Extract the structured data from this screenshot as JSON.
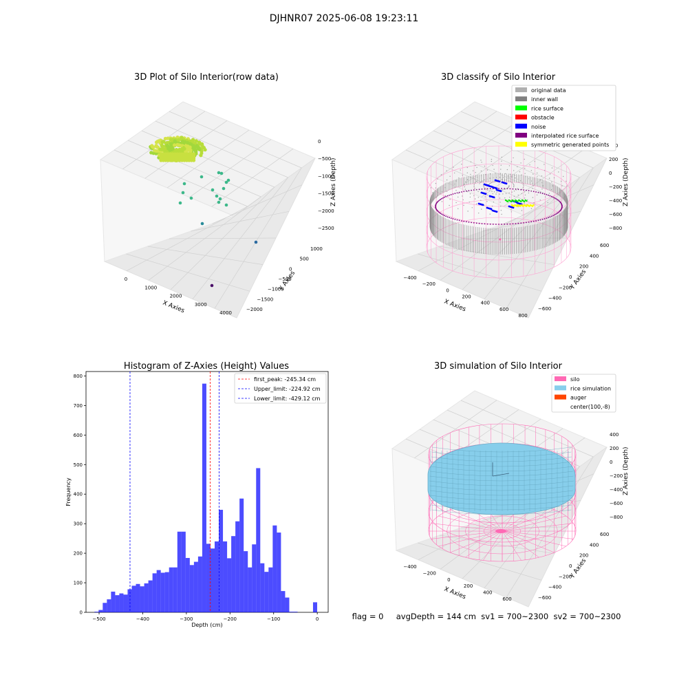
{
  "figure": {
    "suptitle": "DJHNR07 2025-06-08 19:23:11",
    "status_line": "flag = 0     avgDepth = 144 cm  sv1 = 700~2300  sv2 = 700~2300"
  },
  "panels": {
    "raw": {
      "title": "3D Plot of Silo Interior(row data)",
      "xlabel": "X Axies",
      "ylabel": "Y Axies",
      "zlabel": "Z Axies (Depth)",
      "xticks": [
        "0",
        "1000",
        "2000",
        "3000",
        "4000"
      ],
      "yticks": [
        "1000",
        "500",
        "0",
        "−500",
        "−1000",
        "−1500",
        "−2000"
      ],
      "zticks": [
        "0",
        "−500",
        "−1000",
        "−1500",
        "−2000",
        "−2500"
      ]
    },
    "classify": {
      "title": "3D classify of Silo Interior",
      "xlabel": "X Axies",
      "ylabel": "Y Axies",
      "zlabel": "Z Axies (Depth)",
      "xticks": [
        "−400",
        "−200",
        "0",
        "200",
        "400",
        "600",
        "800"
      ],
      "yticks": [
        "600",
        "400",
        "200",
        "0",
        "−200",
        "−400",
        "−600"
      ],
      "zticks": [
        "400",
        "200",
        "0",
        "−200",
        "−400",
        "−600",
        "−800"
      ],
      "legend": [
        {
          "label": "original data",
          "color": "#b0b0b0"
        },
        {
          "label": "inner wall",
          "color": "#808080"
        },
        {
          "label": "rice surface",
          "color": "#00ff00"
        },
        {
          "label": "obstacle",
          "color": "#ff0000"
        },
        {
          "label": "noise",
          "color": "#0000ff"
        },
        {
          "label": "interpolated rice surface",
          "color": "#800080"
        },
        {
          "label": "symmetric generated points",
          "color": "#ffff00"
        }
      ]
    },
    "simulation": {
      "title": "3D simulation of Silo Interior",
      "xlabel": "X Axies",
      "ylabel": "Y Axies",
      "zlabel": "Z Axies (Depth)",
      "xticks": [
        "−400",
        "−200",
        "0",
        "200",
        "400",
        "600"
      ],
      "yticks": [
        "600",
        "400",
        "200",
        "0",
        "−200",
        "−400",
        "−600"
      ],
      "zticks": [
        "400",
        "200",
        "0",
        "−200",
        "−400",
        "−600",
        "−800"
      ],
      "legend": [
        {
          "label": "silo",
          "color": "#ff69b4"
        },
        {
          "label": "rice simulation",
          "color": "#87ceeb"
        },
        {
          "label": "auger",
          "color": "#ff4500"
        },
        {
          "label": "center(100,-8)",
          "color": ""
        }
      ]
    }
  },
  "chart_data": {
    "type": "bar",
    "title": "Histogram of Z-Axies (Height) Values",
    "xlabel": "Depth (cm)",
    "ylabel": "Frequency",
    "xlim": [
      -530,
      25
    ],
    "ylim": [
      0,
      815
    ],
    "xticks": [
      "−500",
      "−400",
      "−300",
      "−200",
      "−100",
      "0"
    ],
    "yticks": [
      "0",
      "100",
      "200",
      "300",
      "400",
      "500",
      "600",
      "700",
      "800"
    ],
    "bar_color": "#0000ff",
    "bin_width": 9.5,
    "bins": [
      {
        "x": -505.9,
        "v": 2
      },
      {
        "x": -496.4,
        "v": 8
      },
      {
        "x": -486.9,
        "v": 32
      },
      {
        "x": -477.4,
        "v": 44
      },
      {
        "x": -467.9,
        "v": 70
      },
      {
        "x": -458.4,
        "v": 58
      },
      {
        "x": -448.9,
        "v": 64
      },
      {
        "x": -439.4,
        "v": 60
      },
      {
        "x": -429.9,
        "v": 78
      },
      {
        "x": -420.4,
        "v": 90
      },
      {
        "x": -410.9,
        "v": 96
      },
      {
        "x": -401.4,
        "v": 88
      },
      {
        "x": -391.9,
        "v": 98
      },
      {
        "x": -382.4,
        "v": 108
      },
      {
        "x": -372.9,
        "v": 132
      },
      {
        "x": -363.4,
        "v": 143
      },
      {
        "x": -353.9,
        "v": 134
      },
      {
        "x": -344.4,
        "v": 136
      },
      {
        "x": -334.9,
        "v": 152
      },
      {
        "x": -325.4,
        "v": 152
      },
      {
        "x": -315.9,
        "v": 273
      },
      {
        "x": -306.4,
        "v": 273
      },
      {
        "x": -296.9,
        "v": 184
      },
      {
        "x": -287.4,
        "v": 160
      },
      {
        "x": -277.9,
        "v": 171
      },
      {
        "x": -268.4,
        "v": 189
      },
      {
        "x": -258.9,
        "v": 774
      },
      {
        "x": -249.4,
        "v": 232
      },
      {
        "x": -239.9,
        "v": 216
      },
      {
        "x": -230.4,
        "v": 240
      },
      {
        "x": -220.9,
        "v": 347
      },
      {
        "x": -211.4,
        "v": 240
      },
      {
        "x": -201.9,
        "v": 183
      },
      {
        "x": -192.4,
        "v": 258
      },
      {
        "x": -182.9,
        "v": 308
      },
      {
        "x": -173.4,
        "v": 385
      },
      {
        "x": -163.9,
        "v": 207
      },
      {
        "x": -154.4,
        "v": 152
      },
      {
        "x": -144.9,
        "v": 230
      },
      {
        "x": -135.4,
        "v": 488
      },
      {
        "x": -125.9,
        "v": 166
      },
      {
        "x": -116.4,
        "v": 137
      },
      {
        "x": -106.9,
        "v": 152
      },
      {
        "x": -97.4,
        "v": 294
      },
      {
        "x": -87.9,
        "v": 270
      },
      {
        "x": -78.4,
        "v": 72
      },
      {
        "x": -68.9,
        "v": 50
      },
      {
        "x": -59.4,
        "v": 2
      },
      {
        "x": -49.9,
        "v": 2
      },
      {
        "x": -5.0,
        "v": 34
      }
    ],
    "lines": [
      {
        "label": "first_peak: -245.34 cm",
        "x": -245.34,
        "color": "#ff0000"
      },
      {
        "label": "Upper_limit: -224.92 cm",
        "x": -224.92,
        "color": "#0000ff"
      },
      {
        "label": "Lower_limit: -429.12 cm",
        "x": -429.12,
        "color": "#0000ff"
      }
    ]
  }
}
